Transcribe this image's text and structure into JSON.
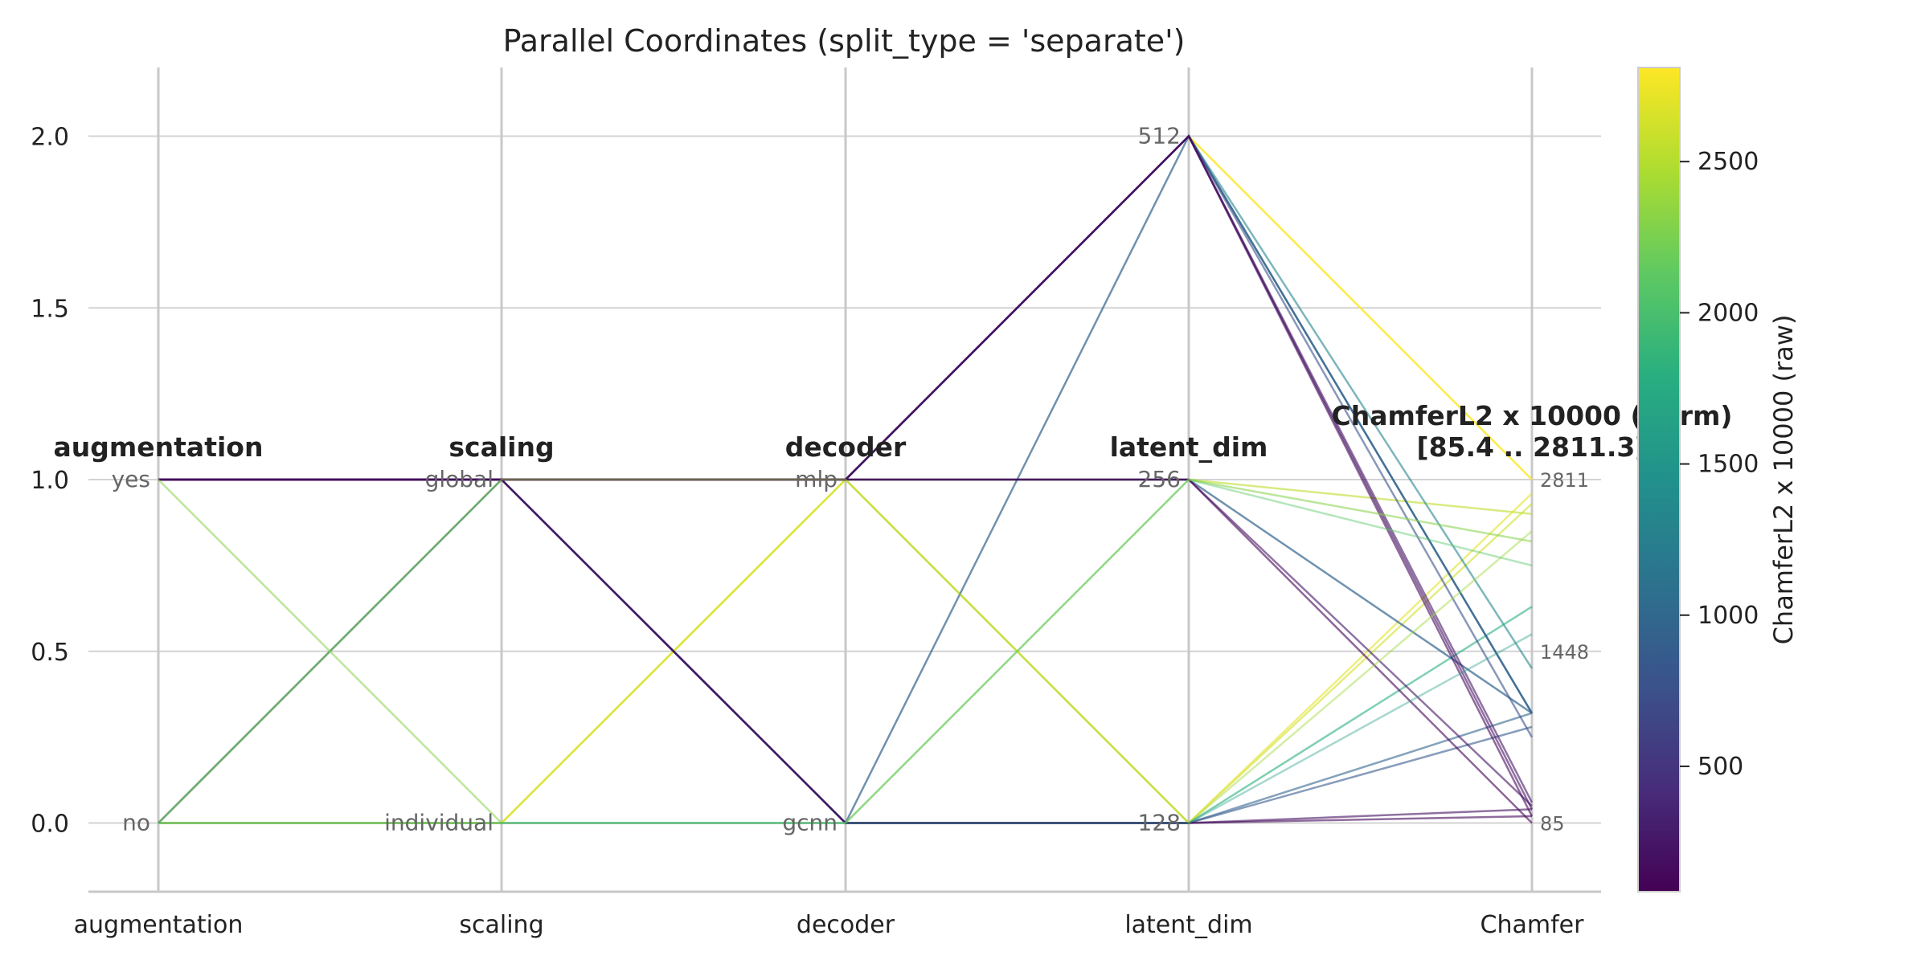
{
  "chart_data": {
    "type": "parallel_coordinates",
    "title": "Parallel Coordinates (split_type = 'separate')",
    "y_ticks": [
      "0.0",
      "0.5",
      "1.0",
      "1.5",
      "2.0"
    ],
    "y_tick_values": [
      0.0,
      0.5,
      1.0,
      1.5,
      2.0
    ],
    "ylim": [
      -0.2,
      2.2
    ],
    "grid": true,
    "axes": [
      {
        "name": "augmentation",
        "header": "augmentation",
        "x_label": "augmentation",
        "ticks": [
          {
            "value": 1.0,
            "label": "yes"
          },
          {
            "value": 0.0,
            "label": "no"
          }
        ]
      },
      {
        "name": "scaling",
        "header": "scaling",
        "x_label": "scaling",
        "ticks": [
          {
            "value": 1.0,
            "label": "global"
          },
          {
            "value": 0.0,
            "label": "individual"
          }
        ]
      },
      {
        "name": "decoder",
        "header": "decoder",
        "x_label": "decoder",
        "ticks": [
          {
            "value": 1.0,
            "label": "mlp"
          },
          {
            "value": 0.0,
            "label": "gcnn"
          }
        ]
      },
      {
        "name": "latent_dim",
        "header": "latent_dim",
        "x_label": "latent_dim",
        "ticks": [
          {
            "value": 2.0,
            "label": "512"
          },
          {
            "value": 1.0,
            "label": "256"
          },
          {
            "value": 0.0,
            "label": "128"
          }
        ]
      },
      {
        "name": "Chamfer",
        "header": "ChamferL2 x 10000 (norm)",
        "header2": "[85.4 .. 2811.3]",
        "x_label": "Chamfer",
        "ticks": [
          {
            "value": 1.0,
            "label": "2811"
          },
          {
            "value": 0.5,
            "label": "1448"
          },
          {
            "value": 0.0,
            "label": "85"
          }
        ]
      }
    ],
    "colorbar": {
      "label": "ChamferL2 x 10000 (raw)",
      "range": [
        85.4,
        2811.3
      ],
      "ticks": [
        500,
        1000,
        1500,
        2000,
        2500
      ],
      "tick_labels": [
        "500",
        "1000",
        "1500",
        "2000",
        "2500"
      ],
      "colormap": "viridis"
    },
    "series": [
      {
        "values": [
          1,
          1,
          1,
          2,
          1.0
        ],
        "raw": 2811,
        "opacity": 0.85
      },
      {
        "values": [
          0,
          0,
          1,
          1,
          0.9
        ],
        "raw": 2540,
        "opacity": 0.6
      },
      {
        "values": [
          0,
          0,
          1,
          0,
          0.93
        ],
        "raw": 2620,
        "opacity": 0.6
      },
      {
        "values": [
          0,
          0,
          1,
          0,
          0.96
        ],
        "raw": 2700,
        "opacity": 0.6
      },
      {
        "values": [
          1,
          1,
          1,
          2,
          0.45
        ],
        "raw": 1315,
        "opacity": 0.6
      },
      {
        "values": [
          0,
          1,
          0,
          0,
          0.63
        ],
        "raw": 1800,
        "opacity": 0.6
      },
      {
        "values": [
          1,
          1,
          1,
          2,
          0.32
        ],
        "raw": 960,
        "opacity": 0.7
      },
      {
        "values": [
          0,
          1,
          0,
          2,
          0.32
        ],
        "raw": 960,
        "opacity": 0.7
      },
      {
        "values": [
          1,
          1,
          1,
          1,
          0.32
        ],
        "raw": 960,
        "opacity": 0.7
      },
      {
        "values": [
          1,
          1,
          0,
          0,
          0.32
        ],
        "raw": 960,
        "opacity": 0.6
      },
      {
        "values": [
          1,
          1,
          1,
          2,
          0.25
        ],
        "raw": 760,
        "opacity": 0.6
      },
      {
        "values": [
          1,
          1,
          0,
          0,
          0.28
        ],
        "raw": 850,
        "opacity": 0.6
      },
      {
        "values": [
          1,
          1,
          1,
          2,
          0.06
        ],
        "raw": 250,
        "opacity": 0.6
      },
      {
        "values": [
          1,
          1,
          1,
          2,
          0.04
        ],
        "raw": 200,
        "opacity": 0.6
      },
      {
        "values": [
          1,
          1,
          1,
          2,
          0.02
        ],
        "raw": 150,
        "opacity": 0.6
      },
      {
        "values": [
          1,
          1,
          1,
          1,
          0.05
        ],
        "raw": 230,
        "opacity": 0.6
      },
      {
        "values": [
          1,
          1,
          1,
          1,
          0.0
        ],
        "raw": 85,
        "opacity": 0.6
      },
      {
        "values": [
          1,
          1,
          0,
          0,
          0.04
        ],
        "raw": 200,
        "opacity": 0.6
      },
      {
        "values": [
          1,
          1,
          0,
          0,
          0.02
        ],
        "raw": 140,
        "opacity": 0.6
      },
      {
        "values": [
          1,
          0,
          0,
          1,
          0.82
        ],
        "raw": 2300,
        "opacity": 0.55
      },
      {
        "values": [
          0,
          1,
          1,
          0,
          0.85
        ],
        "raw": 2400,
        "opacity": 0.45
      },
      {
        "values": [
          0,
          0,
          0,
          1,
          0.75
        ],
        "raw": 2100,
        "opacity": 0.45
      },
      {
        "values": [
          0,
          0,
          0,
          0,
          0.55
        ],
        "raw": 1550,
        "opacity": 0.4
      }
    ]
  }
}
